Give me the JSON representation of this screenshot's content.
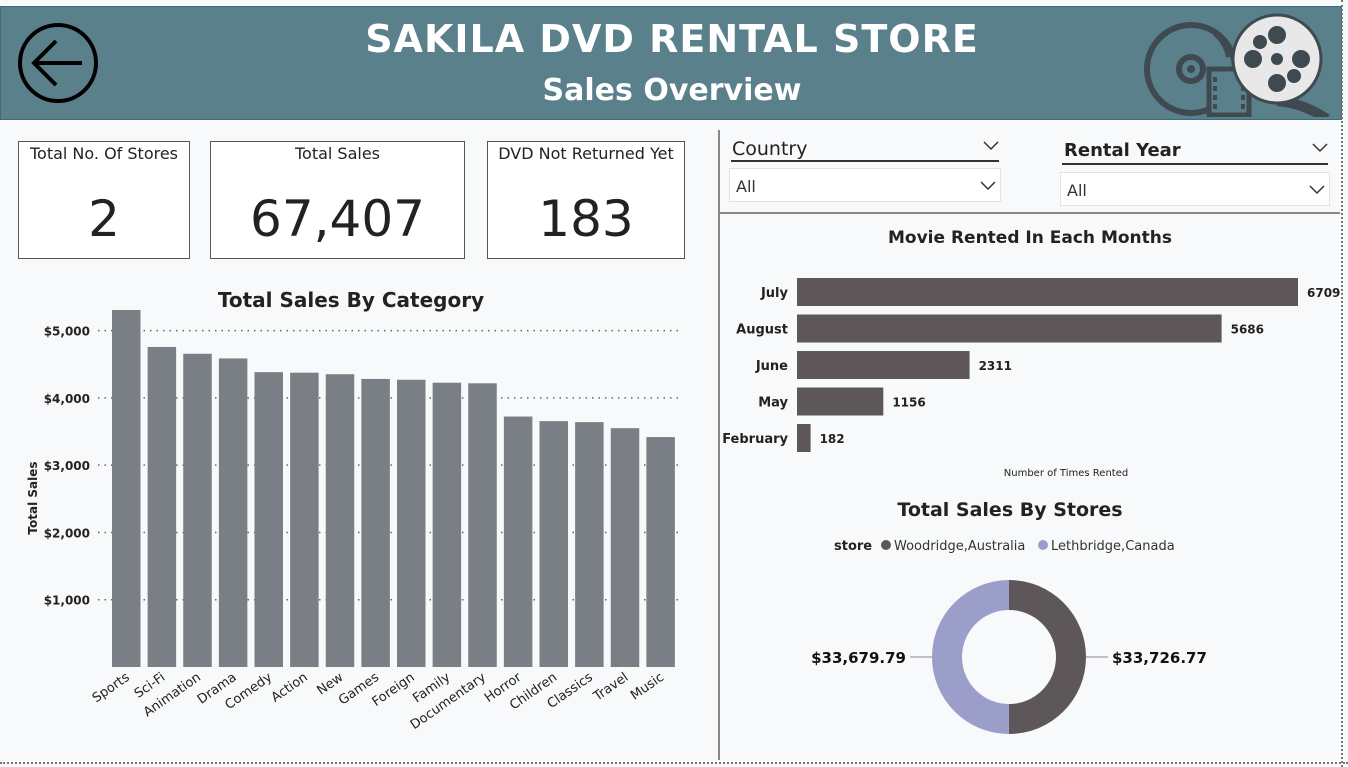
{
  "header": {
    "title": "SAKILA DVD RENTAL STORE",
    "subtitle": "Sales Overview",
    "back_icon": "back-arrow-icon",
    "logo_icon": "film-reel-icon",
    "bg_color": "#5a808c"
  },
  "cards": [
    {
      "label": "Total No. Of Stores",
      "value": "2"
    },
    {
      "label": "Total Sales",
      "value": "67,407"
    },
    {
      "label": "DVD Not Returned Yet",
      "value": "183"
    }
  ],
  "slicers": {
    "country": {
      "label": "Country",
      "value": "All"
    },
    "rental_year": {
      "label": "Rental Year",
      "value": "All"
    }
  },
  "chart_data": [
    {
      "type": "bar",
      "title": "Total Sales By Category",
      "xlabel": "",
      "ylabel": "Total Sales",
      "categories": [
        "Sports",
        "Sci-Fi",
        "Animation",
        "Drama",
        "Comedy",
        "Action",
        "New",
        "Games",
        "Foreign",
        "Family",
        "Documentary",
        "Horror",
        "Children",
        "Classics",
        "Travel",
        "Music"
      ],
      "values": [
        5314,
        4757,
        4656,
        4587,
        4383,
        4375,
        4352,
        4282,
        4270,
        4226,
        4217,
        3723,
        3655,
        3640,
        3550,
        3418
      ],
      "ylim": [
        0,
        5500
      ],
      "yticks": [
        "$1,000",
        "$2,000",
        "$3,000",
        "$4,000",
        "$5,000"
      ],
      "ytick_values": [
        1000,
        2000,
        3000,
        4000,
        5000
      ],
      "grid": true,
      "color": "#7a7f86"
    },
    {
      "type": "bar",
      "orientation": "horizontal",
      "title": "Movie Rented In Each Months",
      "xlabel": "Number of Times Rented",
      "ylabel": "",
      "categories": [
        "July",
        "August",
        "June",
        "May",
        "February"
      ],
      "values": [
        6709,
        5686,
        2311,
        1156,
        182
      ],
      "color": "#5e5759"
    },
    {
      "type": "pie",
      "donut": true,
      "title": "Total Sales By Stores",
      "legend_title": "store",
      "legend_position": "top",
      "labels": [
        "Woodridge,Australia",
        "Lethbridge,Canada"
      ],
      "values": [
        33726.77,
        33679.79
      ],
      "value_labels": [
        "$33,726.77",
        "$33,679.79"
      ],
      "colors": [
        "#5e5759",
        "#9b9ec8"
      ]
    }
  ]
}
